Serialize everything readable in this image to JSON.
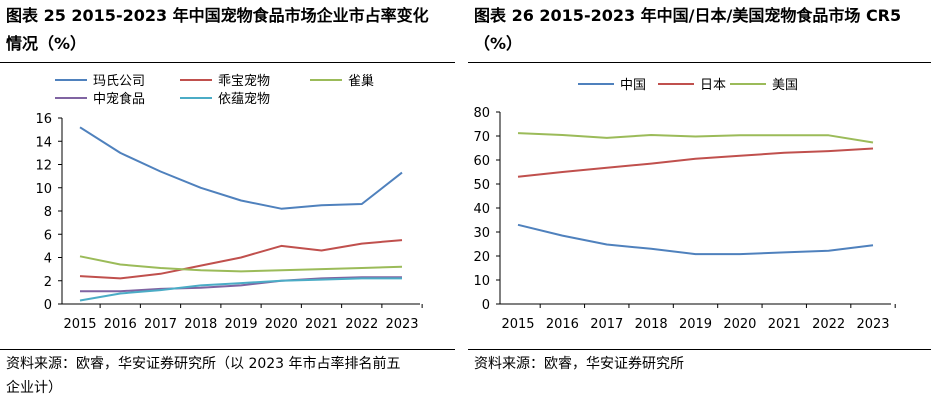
{
  "left": {
    "title_line1": "图表 25 2015-2023 年中国宠物食品市场企业市占率变化",
    "title_line2": "情况（%）",
    "source_line1": "资料来源：欧睿，华安证券研究所（以 2023 年市占率排名前五",
    "source_line2": "企业计）"
  },
  "right": {
    "title_line1": "图表 26 2015-2023 年中国/日本/美国宠物食品市场 CR5",
    "title_line2": "（%）",
    "source_line1": "资料来源：欧睿，华安证券研究所"
  },
  "chart_data": [
    {
      "type": "line",
      "categories": [
        "2015",
        "2016",
        "2017",
        "2018",
        "2019",
        "2020",
        "2021",
        "2022",
        "2023"
      ],
      "ylim": [
        0,
        16
      ],
      "yticks": [
        "0",
        "2",
        "4",
        "6",
        "8",
        "10",
        "12",
        "14",
        "16"
      ],
      "grid": false,
      "legend": "top",
      "series": [
        {
          "name": "玛氏公司",
          "color": "#4f81bd",
          "values": [
            15.2,
            13.0,
            11.4,
            10.0,
            8.9,
            8.2,
            8.5,
            8.6,
            11.3
          ]
        },
        {
          "name": "乖宝宠物",
          "color": "#c0504d",
          "values": [
            2.4,
            2.2,
            2.6,
            3.3,
            4.0,
            5.0,
            4.6,
            5.2,
            5.5
          ]
        },
        {
          "name": "雀巢",
          "color": "#9bbb59",
          "values": [
            4.1,
            3.4,
            3.1,
            2.9,
            2.8,
            2.9,
            3.0,
            3.1,
            3.2
          ]
        },
        {
          "name": "中宠食品",
          "color": "#8064a2",
          "values": [
            1.1,
            1.1,
            1.3,
            1.4,
            1.6,
            2.0,
            2.2,
            2.3,
            2.3
          ]
        },
        {
          "name": "依蕴宠物",
          "color": "#4bacc6",
          "values": [
            0.3,
            0.9,
            1.2,
            1.6,
            1.8,
            2.0,
            2.1,
            2.2,
            2.2
          ]
        }
      ]
    },
    {
      "type": "line",
      "categories": [
        "2015",
        "2016",
        "2017",
        "2018",
        "2019",
        "2020",
        "2021",
        "2022",
        "2023"
      ],
      "ylim": [
        0,
        80
      ],
      "yticks": [
        "0",
        "10",
        "20",
        "30",
        "40",
        "50",
        "60",
        "70",
        "80"
      ],
      "grid": false,
      "legend": "top",
      "series": [
        {
          "name": "中国",
          "color": "#4f81bd",
          "values": [
            33.0,
            28.5,
            24.8,
            23.0,
            20.8,
            20.8,
            21.5,
            22.2,
            24.5
          ]
        },
        {
          "name": "日本",
          "color": "#c0504d",
          "values": [
            53.0,
            55.0,
            56.8,
            58.5,
            60.5,
            61.8,
            63.0,
            63.7,
            64.8
          ]
        },
        {
          "name": "美国",
          "color": "#9bbb59",
          "values": [
            71.2,
            70.4,
            69.2,
            70.4,
            69.8,
            70.3,
            70.3,
            70.3,
            67.3
          ]
        }
      ]
    }
  ]
}
